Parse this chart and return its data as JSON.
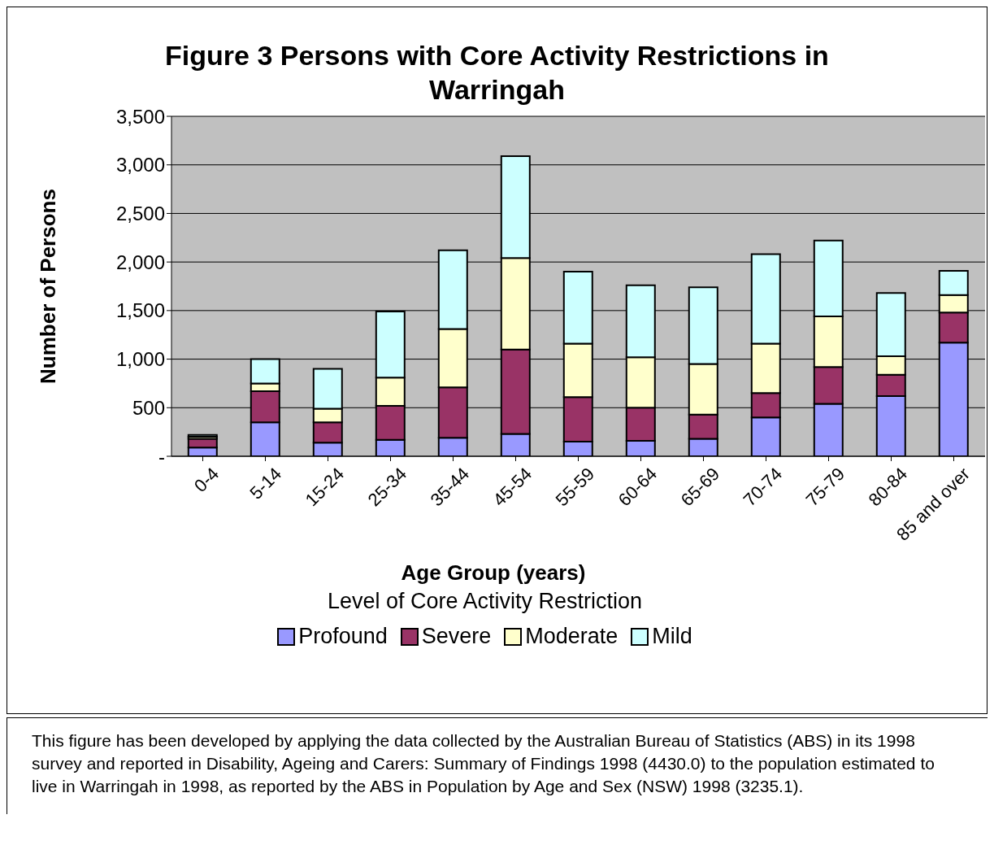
{
  "chart_data": {
    "type": "bar",
    "stacked": true,
    "title": "Figure 3  Persons with Core Activity Restrictions in Warringah",
    "xlabel": "Age Group (years)",
    "ylabel": "Number of Persons",
    "legend_title": "Level of Core Activity Restriction",
    "categories": [
      "0-4",
      "5-14",
      "15-24",
      "25-34",
      "35-44",
      "45-54",
      "55-59",
      "60-64",
      "65-69",
      "70-74",
      "75-79",
      "80-84",
      "85 and over"
    ],
    "series": [
      {
        "name": "Profound",
        "color": "#9999ff",
        "values": [
          90,
          350,
          140,
          170,
          190,
          230,
          150,
          160,
          180,
          400,
          540,
          620,
          1170
        ]
      },
      {
        "name": "Severe",
        "color": "#993366",
        "values": [
          90,
          320,
          210,
          350,
          520,
          870,
          460,
          340,
          250,
          250,
          380,
          220,
          310
        ]
      },
      {
        "name": "Moderate",
        "color": "#ffffcc",
        "values": [
          20,
          80,
          140,
          290,
          600,
          940,
          550,
          520,
          520,
          510,
          520,
          190,
          180
        ]
      },
      {
        "name": "Mild",
        "color": "#ccffff",
        "values": [
          20,
          250,
          410,
          680,
          810,
          1050,
          740,
          740,
          790,
          920,
          780,
          650,
          250
        ]
      }
    ],
    "ylim": [
      0,
      3500
    ],
    "yticks": [
      {
        "value": 0,
        "label": "-"
      },
      {
        "value": 500,
        "label": "500"
      },
      {
        "value": 1000,
        "label": "1,000"
      },
      {
        "value": 1500,
        "label": "1,500"
      },
      {
        "value": 2000,
        "label": "2,000"
      },
      {
        "value": 2500,
        "label": "2,500"
      },
      {
        "value": 3000,
        "label": "3,000"
      },
      {
        "value": 3500,
        "label": "3,500"
      }
    ],
    "grid": "y",
    "legend": "bottom",
    "annotations": [
      "This figure has been developed by applying the data collected by the Australian Bureau of Statistics (ABS) in its 1998 survey and reported in Disability, Ageing and Carers: Summary of Findings 1998 (4430.0) to the population estimated to live in Warringah in 1998, as reported by the ABS in Population by Age and Sex (NSW) 1998 (3235.1)."
    ]
  }
}
